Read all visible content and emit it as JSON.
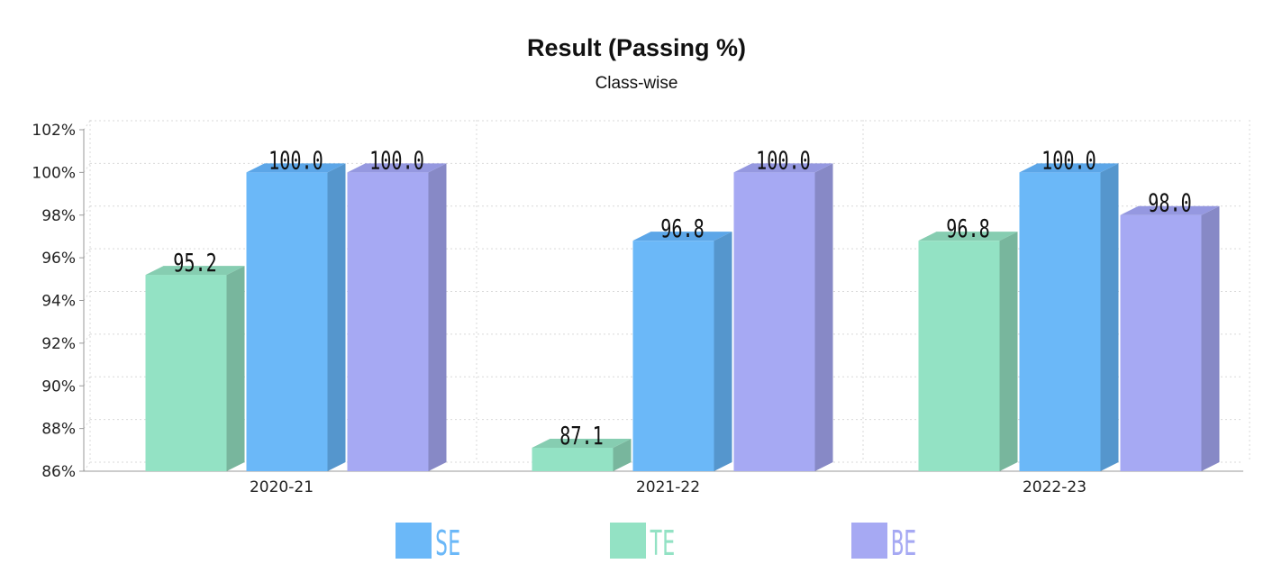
{
  "chart_data": {
    "type": "bar",
    "title": "Result (Passing %)",
    "subtitle": "Class-wise",
    "categories": [
      "2020-21",
      "2021-22",
      "2022-23"
    ],
    "series": [
      {
        "name": "TE",
        "values": [
          95.2,
          87.1,
          96.8
        ],
        "color": "#93e2c4",
        "side_color": "#78b69d",
        "top_color": "#86cdb1"
      },
      {
        "name": "SE",
        "values": [
          100.0,
          96.8,
          100.0
        ],
        "color": "#6bb8f8",
        "side_color": "#5596cd",
        "top_color": "#5ca6e8"
      },
      {
        "name": "BE",
        "values": [
          100.0,
          100.0,
          98.0
        ],
        "color": "#a6a9f3",
        "side_color": "#8789c6",
        "top_color": "#9598e0"
      }
    ],
    "data_labels": [
      [
        "95.2",
        "87.1",
        "96.8"
      ],
      [
        "100.0",
        "96.8",
        "100.0"
      ],
      [
        "100.0",
        "100.0",
        "98.0"
      ]
    ],
    "ylim": [
      86,
      102
    ],
    "yticks": [
      "86%",
      "88%",
      "90%",
      "92%",
      "94%",
      "96%",
      "98%",
      "100%",
      "102%"
    ],
    "ytick_values": [
      86,
      88,
      90,
      92,
      94,
      96,
      98,
      100,
      102
    ],
    "legend_order": [
      "SE",
      "TE",
      "BE"
    ],
    "legend_position": "bottom",
    "grid": true,
    "bar_style": "3d"
  }
}
